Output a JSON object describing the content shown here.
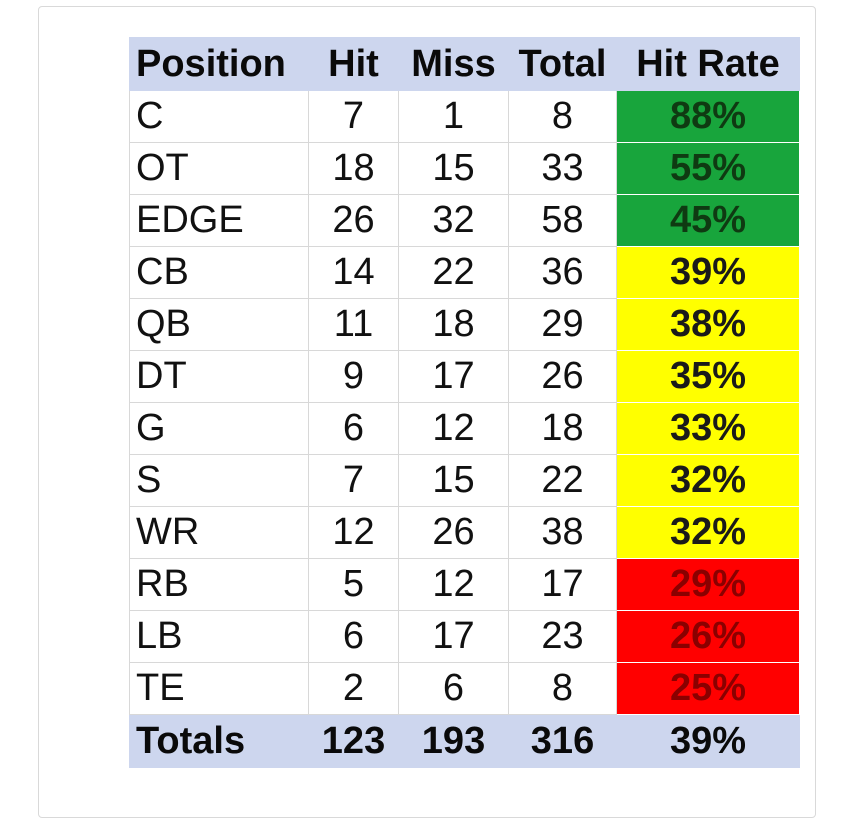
{
  "table": {
    "headers": [
      "Position",
      "Hit",
      "Miss",
      "Total",
      "Hit Rate"
    ],
    "rows": [
      {
        "position": "C",
        "hit": "7",
        "miss": "1",
        "total": "8",
        "rate": "88%",
        "color": "#18a53c"
      },
      {
        "position": "OT",
        "hit": "18",
        "miss": "15",
        "total": "33",
        "rate": "55%",
        "color": "#18a53c"
      },
      {
        "position": "EDGE",
        "hit": "26",
        "miss": "32",
        "total": "58",
        "rate": "45%",
        "color": "#18a53c"
      },
      {
        "position": "CB",
        "hit": "14",
        "miss": "22",
        "total": "36",
        "rate": "39%",
        "color": "#ffff00"
      },
      {
        "position": "QB",
        "hit": "11",
        "miss": "18",
        "total": "29",
        "rate": "38%",
        "color": "#ffff00"
      },
      {
        "position": "DT",
        "hit": "9",
        "miss": "17",
        "total": "26",
        "rate": "35%",
        "color": "#ffff00"
      },
      {
        "position": "G",
        "hit": "6",
        "miss": "12",
        "total": "18",
        "rate": "33%",
        "color": "#ffff00"
      },
      {
        "position": "S",
        "hit": "7",
        "miss": "15",
        "total": "22",
        "rate": "32%",
        "color": "#ffff00"
      },
      {
        "position": "WR",
        "hit": "12",
        "miss": "26",
        "total": "38",
        "rate": "32%",
        "color": "#ffff00"
      },
      {
        "position": "RB",
        "hit": "5",
        "miss": "12",
        "total": "17",
        "rate": "29%",
        "color": "#ff0000"
      },
      {
        "position": "LB",
        "hit": "6",
        "miss": "17",
        "total": "23",
        "rate": "26%",
        "color": "#ff0000"
      },
      {
        "position": "TE",
        "hit": "2",
        "miss": "6",
        "total": "8",
        "rate": "25%",
        "color": "#ff0000"
      }
    ],
    "totals": {
      "label": "Totals",
      "hit": "123",
      "miss": "193",
      "total": "316",
      "rate": "39%"
    }
  },
  "colors": {
    "header_bg": "#cdd6ee",
    "green": "#18a53c",
    "yellow": "#ffff00",
    "red": "#ff0000"
  }
}
